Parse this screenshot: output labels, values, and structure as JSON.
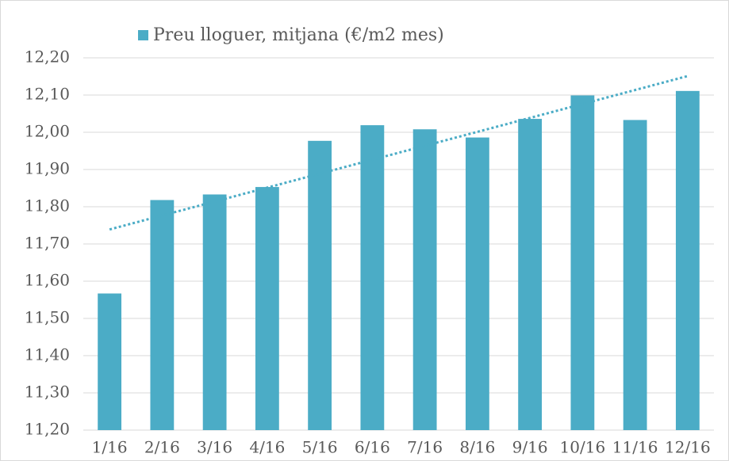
{
  "chart_data": {
    "type": "bar",
    "legend": "Preu lloguer, mitjana (€/m2 mes)",
    "legend_position": "top",
    "categories": [
      "1/16",
      "2/16",
      "3/16",
      "4/16",
      "5/16",
      "6/16",
      "7/16",
      "8/16",
      "9/16",
      "10/16",
      "11/16",
      "12/16"
    ],
    "values": [
      11.567,
      11.818,
      11.833,
      11.853,
      11.977,
      12.019,
      12.008,
      11.986,
      12.036,
      12.099,
      12.033,
      12.111
    ],
    "color": "#4bacc6",
    "trendline": "linear",
    "ylim": [
      11.2,
      12.2
    ],
    "yticks": [
      {
        "value": 11.2,
        "label": "11,20"
      },
      {
        "value": 11.3,
        "label": "11,30"
      },
      {
        "value": 11.4,
        "label": "11,40"
      },
      {
        "value": 11.5,
        "label": "11,50"
      },
      {
        "value": 11.6,
        "label": "11,60"
      },
      {
        "value": 11.7,
        "label": "11,70"
      },
      {
        "value": 11.8,
        "label": "11,80"
      },
      {
        "value": 11.9,
        "label": "11,90"
      },
      {
        "value": 12.0,
        "label": "12,00"
      },
      {
        "value": 12.1,
        "label": "12,10"
      },
      {
        "value": 12.2,
        "label": "12,20"
      }
    ],
    "grid": true
  }
}
